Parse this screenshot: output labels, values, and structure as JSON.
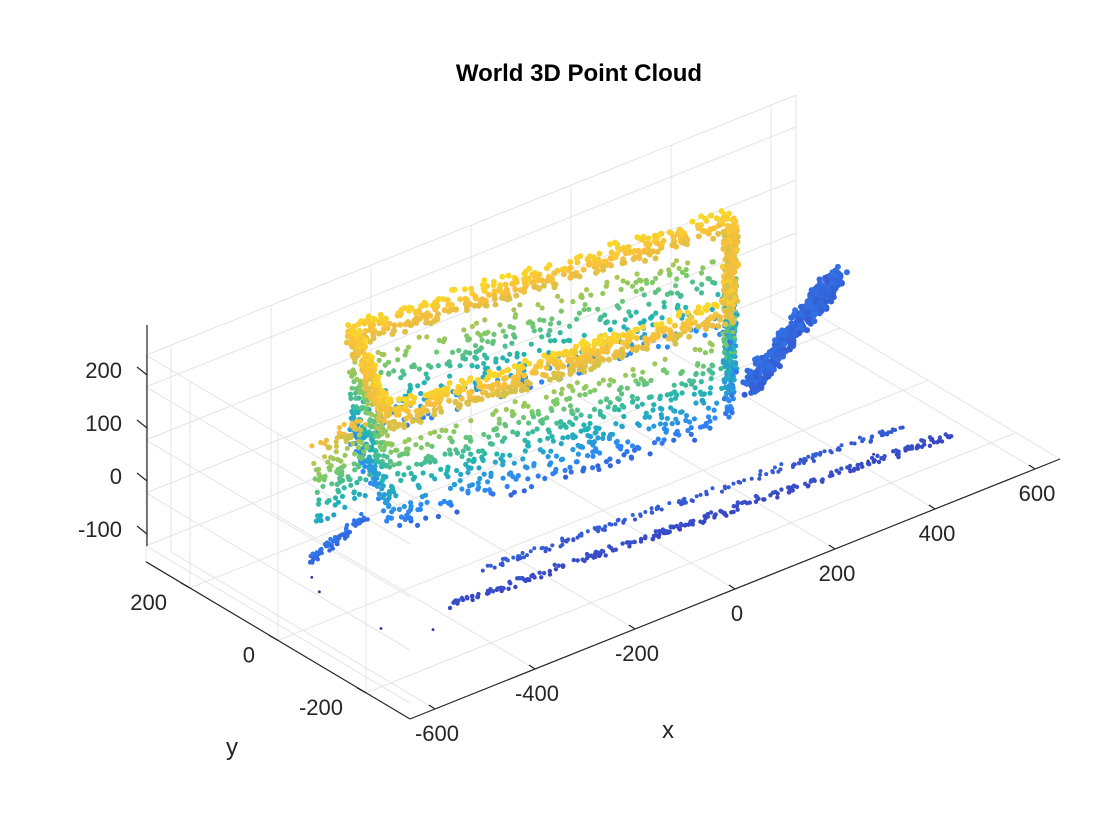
{
  "chart_data": {
    "type": "scatter",
    "title": "World 3D Point Cloud",
    "xlabel": "x",
    "ylabel": "y",
    "zlabel": "",
    "x_ticks": [
      "-600",
      "-400",
      "-200",
      "0",
      "200",
      "400",
      "600"
    ],
    "y_ticks": [
      "-200",
      "0",
      "200"
    ],
    "z_ticks": [
      "-100",
      "0",
      "100",
      "200"
    ],
    "xlim": [
      -600,
      650
    ],
    "ylim": [
      -300,
      300
    ],
    "zlim": [
      -130,
      260
    ],
    "grid": true,
    "colormap": "parula",
    "colors": [
      "#3e26a8",
      "#2e87f7",
      "#21b5b1",
      "#82ca64",
      "#f9be3d",
      "#f9fb0e"
    ],
    "structures": [
      {
        "name": "floor-strip-front",
        "points": [
          [
            -480,
            -170,
            -30
          ],
          [
            480,
            -230,
            -30
          ]
        ]
      },
      {
        "name": "floor-strip-right",
        "points": [
          [
            300,
            -10,
            -20
          ],
          [
            640,
            180,
            -20
          ]
        ]
      },
      {
        "name": "floor-strip-left",
        "points": [
          [
            -560,
            10,
            -10
          ],
          [
            -420,
            70,
            -10
          ]
        ]
      },
      {
        "name": "roof-front-edge",
        "points": [
          [
            -420,
            10,
            200
          ],
          [
            200,
            -60,
            200
          ]
        ]
      },
      {
        "name": "roof-back-edge",
        "points": [
          [
            -300,
            230,
            210
          ],
          [
            380,
            140,
            210
          ]
        ]
      }
    ]
  }
}
